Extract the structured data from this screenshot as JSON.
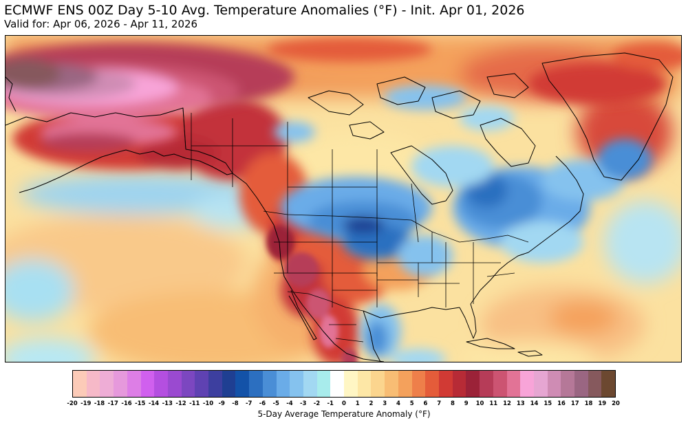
{
  "header": {
    "title": "ECMWF ENS 00Z Day 5-10 Avg. Temperature Anomalies (°F) - Init. Apr 01, 2026",
    "subtitle": "Valid for: Apr 06, 2026 - Apr 11, 2026"
  },
  "map": {
    "region": "North America",
    "variable": "5-day average temperature anomaly",
    "units": "°F",
    "anomaly_areas": [
      {
        "area": "Bering Sea / eastern Siberia",
        "sign": "warm",
        "intensity": "extreme"
      },
      {
        "area": "Alaska",
        "sign": "warm",
        "intensity": "strong"
      },
      {
        "area": "Western Canada and Yukon",
        "sign": "warm",
        "intensity": "strong"
      },
      {
        "area": "Southwestern United States",
        "sign": "warm",
        "intensity": "strong"
      },
      {
        "area": "Mexican Plateau",
        "sign": "warm",
        "intensity": "strong"
      },
      {
        "area": "Canadian Prairies and Northern Plains",
        "sign": "cold",
        "intensity": "strong"
      },
      {
        "area": "Hudson Bay / Quebec",
        "sign": "cold",
        "intensity": "moderate"
      },
      {
        "area": "Eastern Gulf of Alaska",
        "sign": "cold",
        "intensity": "weak"
      },
      {
        "area": "Eastern Mexico",
        "sign": "cold",
        "intensity": "moderate"
      },
      {
        "area": "Greenland",
        "sign": "warm",
        "intensity": "moderate"
      },
      {
        "area": "Subtropical North Atlantic",
        "sign": "warm",
        "intensity": "moderate"
      }
    ]
  },
  "legend": {
    "label": "5-Day Average Temperature Anomaly (°F)",
    "ticks": [
      "-20",
      "-19",
      "-18",
      "-17",
      "-16",
      "-15",
      "-14",
      "-13",
      "-12",
      "-11",
      "-10",
      "-9",
      "-8",
      "-7",
      "-6",
      "-5",
      "-4",
      "-3",
      "-2",
      "-1",
      "0",
      "1",
      "2",
      "3",
      "4",
      "5",
      "6",
      "7",
      "8",
      "9",
      "10",
      "11",
      "12",
      "13",
      "14",
      "15",
      "16",
      "17",
      "18",
      "19",
      "20"
    ],
    "colors": [
      "#fccbb8",
      "#f6b9c8",
      "#eeadd6",
      "#e699dc",
      "#dd7ee6",
      "#d060ee",
      "#b44fe0",
      "#9a4ad0",
      "#7c47c0",
      "#5f42b2",
      "#3d3f9f",
      "#1f3f92",
      "#1352a8",
      "#2c6fc0",
      "#4a8ed6",
      "#6aace8",
      "#85c2ee",
      "#a2d8f2",
      "#a8ecec",
      "#ffffff",
      "#fff6c4",
      "#fde7a6",
      "#fbd58e",
      "#f8bd74",
      "#f4a15c",
      "#ee7f4a",
      "#e45c3a",
      "#d13a34",
      "#b72b36",
      "#9b2238",
      "#b63c58",
      "#cc5472",
      "#e27396",
      "#f8a4d8",
      "#e6a6d2",
      "#cf8cb4",
      "#b57898",
      "#9a6682",
      "#86595d",
      "#6c4830"
    ]
  }
}
